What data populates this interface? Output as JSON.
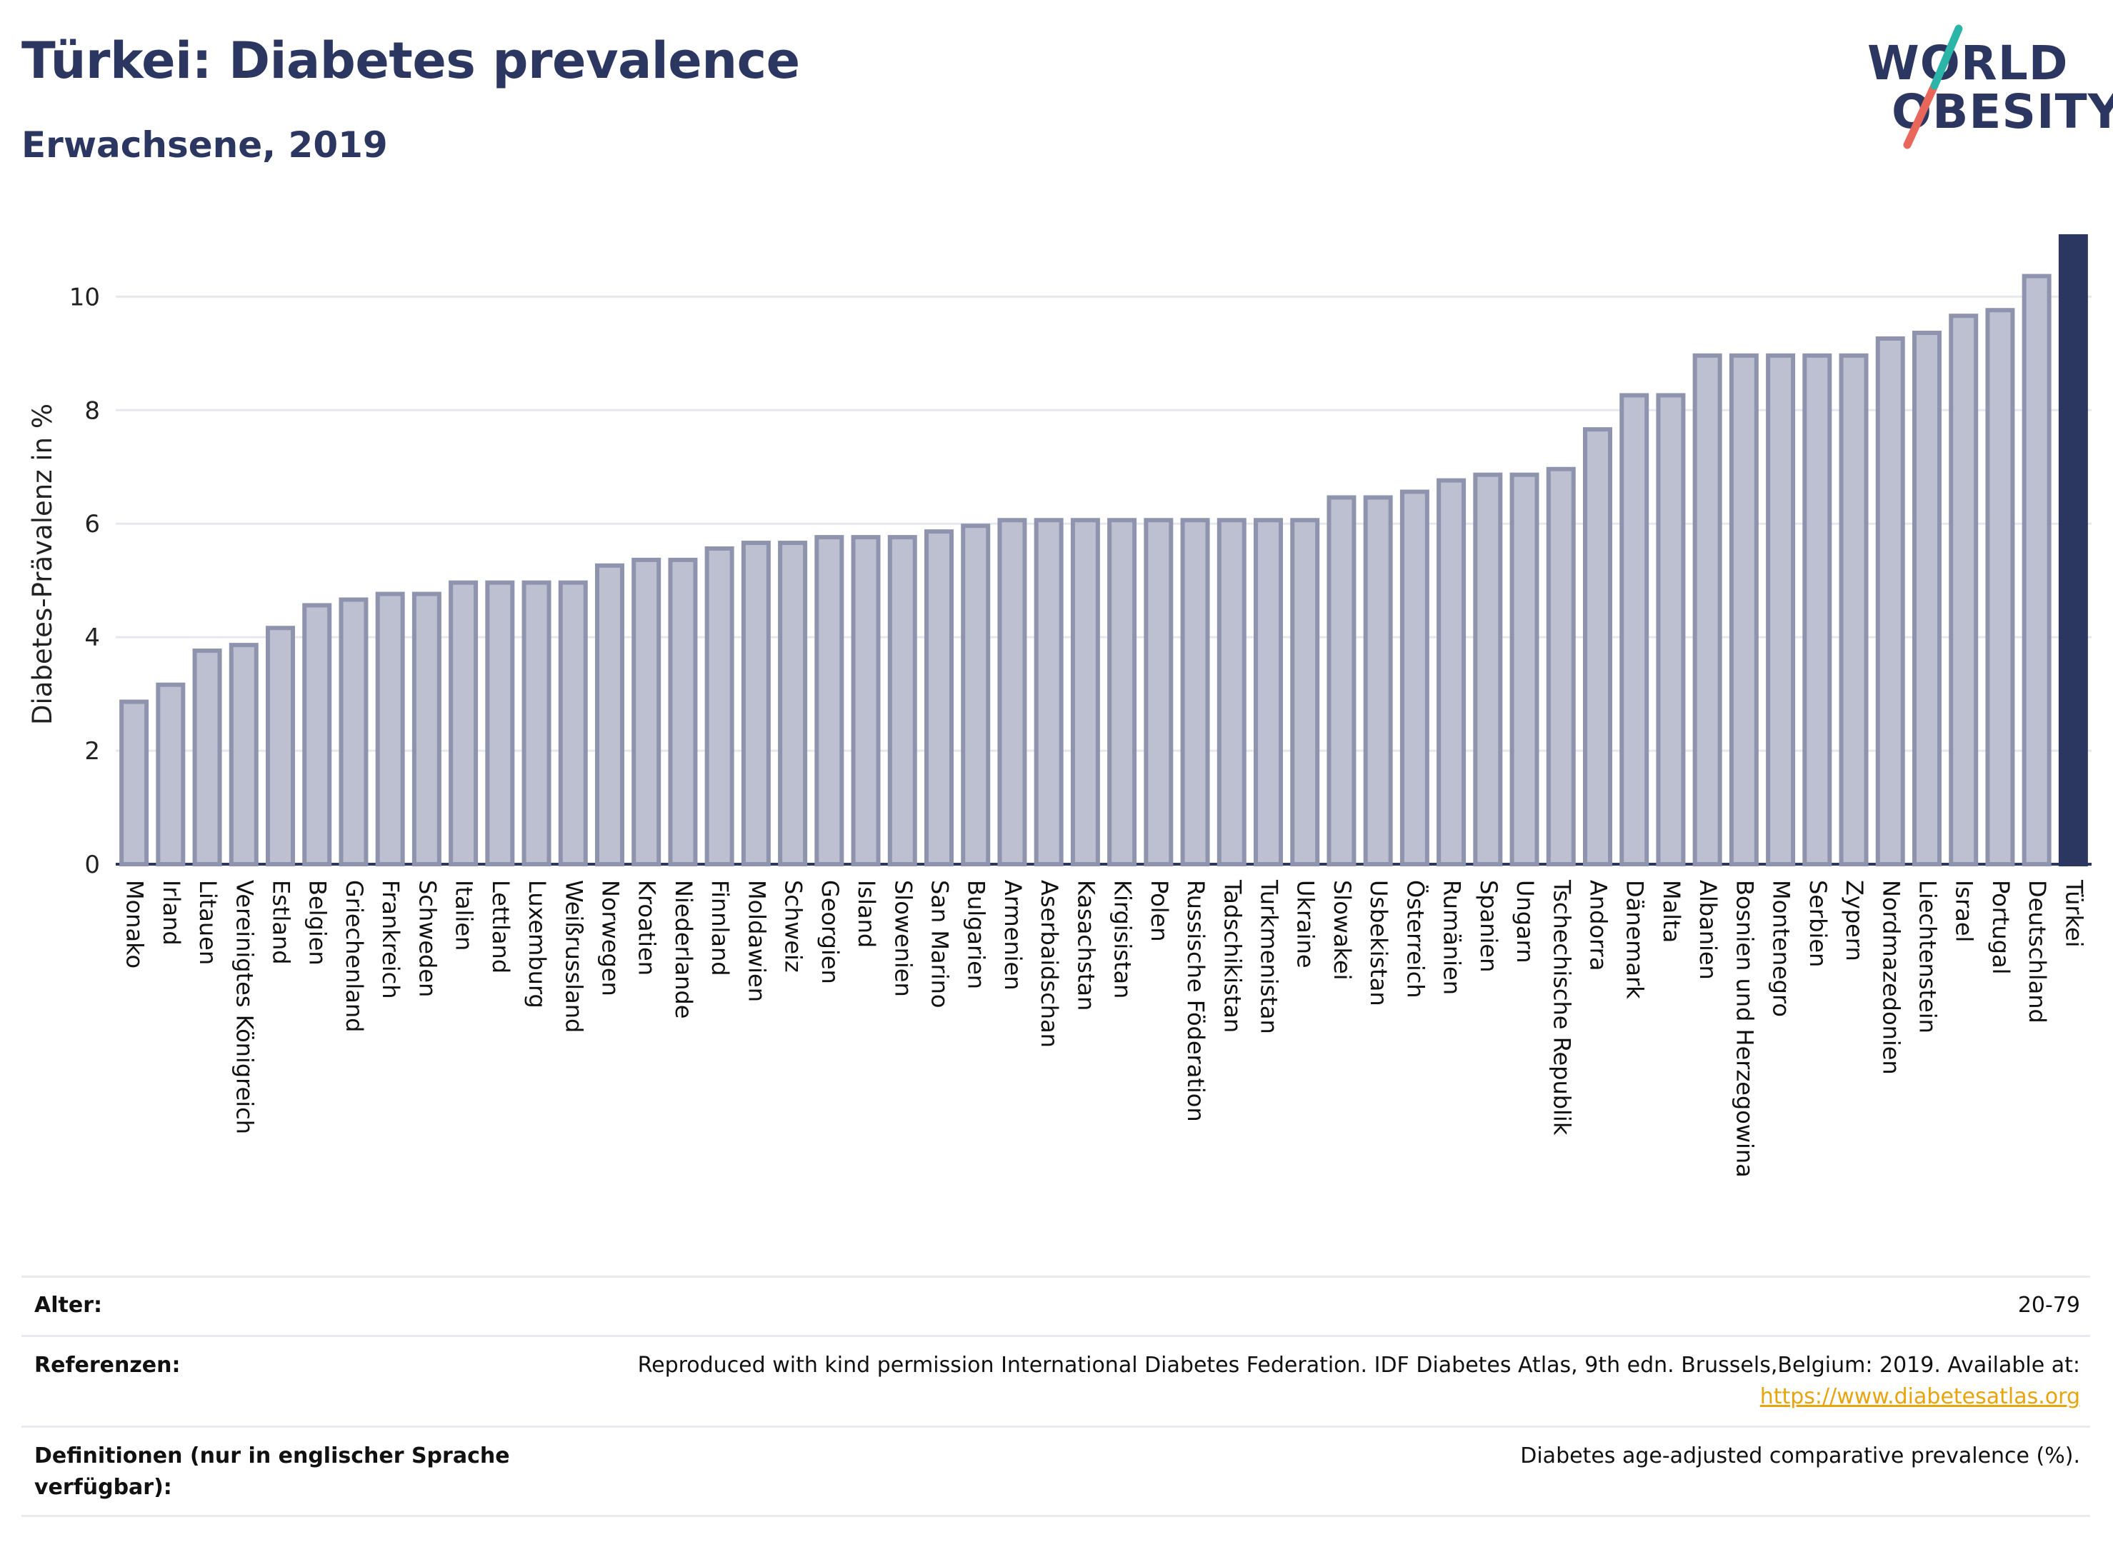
{
  "header": {
    "title": "Türkei: Diabetes prevalence",
    "subtitle": "Erwachsene, 2019"
  },
  "logo": {
    "line1": "WORLD",
    "line2": "OBESITY",
    "colors": {
      "text": "#2c3761",
      "slash_teal": "#2bb5a8",
      "slash_red": "#e8665a"
    }
  },
  "colors": {
    "bar_fill": "#bcc0d0",
    "bar_stroke": "#8e94ad",
    "highlight_bar": "#2c3761",
    "grid": "#e6e8ee",
    "baseline": "#2c3761"
  },
  "chart_data": {
    "type": "bar",
    "title": "Türkei: Diabetes prevalence",
    "subtitle": "Erwachsene, 2019",
    "ylabel": "Diabetes-Prävalenz in %",
    "xlabel": "",
    "ylim": [
      0,
      11.2
    ],
    "yticks": [
      0,
      2,
      4,
      6,
      8,
      10
    ],
    "grid": true,
    "highlight": "Türkei",
    "categories": [
      "Monako",
      "Irland",
      "Litauen",
      "Vereinigtes Königreich",
      "Estland",
      "Belgien",
      "Griechenland",
      "Frankreich",
      "Schweden",
      "Italien",
      "Lettland",
      "Luxemburg",
      "Weißrussland",
      "Norwegen",
      "Kroatien",
      "Niederlande",
      "Finnland",
      "Moldawien",
      "Schweiz",
      "Georgien",
      "Island",
      "Slowenien",
      "San Marino",
      "Bulgarien",
      "Armenien",
      "Aserbaidschan",
      "Kasachstan",
      "Kirgisistan",
      "Polen",
      "Russische Föderation",
      "Tadschikistan",
      "Turkmenistan",
      "Ukraine",
      "Slowakei",
      "Usbekistan",
      "Österreich",
      "Rumänien",
      "Spanien",
      "Ungarn",
      "Tschechische Republik",
      "Andorra",
      "Dänemark",
      "Malta",
      "Albanien",
      "Bosnien und Herzegowina",
      "Montenegro",
      "Serbien",
      "Zypern",
      "Nordmazedonien",
      "Liechtenstein",
      "Israel",
      "Portugal",
      "Deutschland",
      "Türkei"
    ],
    "values": [
      2.9,
      3.2,
      3.8,
      3.9,
      4.2,
      4.6,
      4.7,
      4.8,
      4.8,
      5.0,
      5.0,
      5.0,
      5.0,
      5.3,
      5.4,
      5.4,
      5.6,
      5.7,
      5.7,
      5.8,
      5.8,
      5.8,
      5.9,
      6.0,
      6.1,
      6.1,
      6.1,
      6.1,
      6.1,
      6.1,
      6.1,
      6.1,
      6.1,
      6.5,
      6.5,
      6.6,
      6.8,
      6.9,
      6.9,
      7.0,
      7.7,
      8.3,
      8.3,
      9.0,
      9.0,
      9.0,
      9.0,
      9.0,
      9.3,
      9.4,
      9.7,
      9.8,
      10.4,
      11.1
    ]
  },
  "meta": {
    "age_label": "Alter:",
    "age_value": "20-79",
    "ref_label": "Referenzen:",
    "ref_text": "Reproduced with kind permission International Diabetes Federation. IDF Diabetes Atlas, 9th edn. Brussels,Belgium: 2019. Available at:",
    "ref_link": "https://www.diabetesatlas.org",
    "def_label_1": "Definitionen (nur in englischer Sprache",
    "def_label_2": "verfügbar):",
    "def_value": "Diabetes age-adjusted comparative prevalence (%)."
  }
}
